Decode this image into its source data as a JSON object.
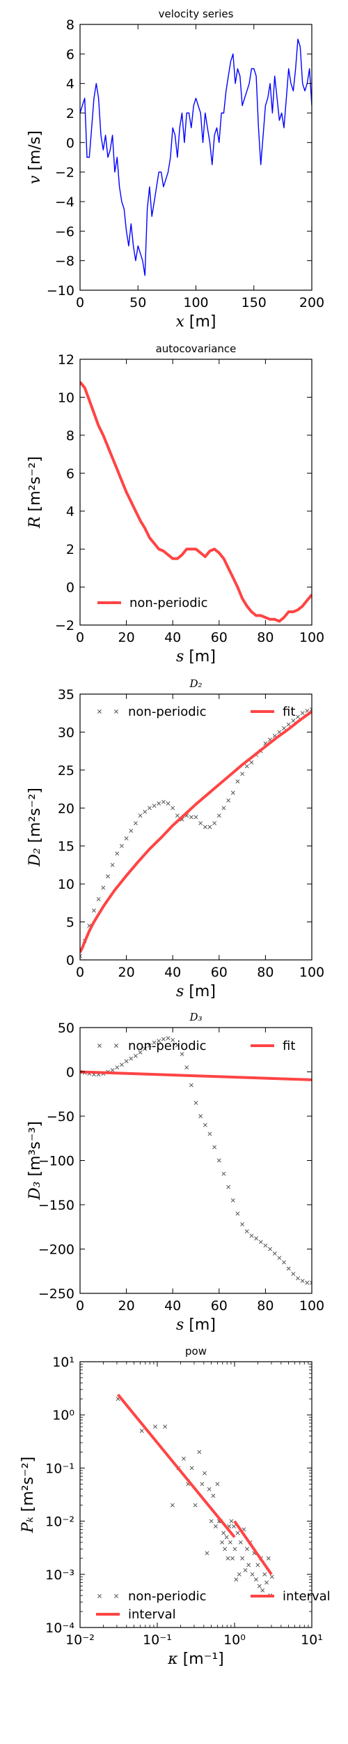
{
  "chart_data": [
    {
      "id": "velocity",
      "type": "line",
      "title": "velocity series",
      "xlabel_symbol": "x",
      "xlabel_unit": "[m]",
      "ylabel_symbol": "v",
      "ylabel_unit": "[m/s]",
      "xlim": [
        0,
        200
      ],
      "ylim": [
        -10,
        8
      ],
      "xticks": [
        0,
        50,
        100,
        150,
        200
      ],
      "yticks": [
        -10,
        -8,
        -6,
        -4,
        -2,
        0,
        2,
        4,
        6,
        8
      ],
      "legend": "none",
      "series": [
        {
          "color": "#0000ff",
          "style": "line",
          "x": [
            0,
            2,
            4,
            6,
            8,
            10,
            12,
            14,
            16,
            18,
            20,
            22,
            24,
            26,
            28,
            30,
            32,
            34,
            36,
            38,
            40,
            42,
            44,
            46,
            48,
            50,
            52,
            54,
            56,
            58,
            60,
            62,
            64,
            66,
            68,
            70,
            72,
            74,
            76,
            78,
            80,
            82,
            84,
            86,
            88,
            90,
            92,
            94,
            96,
            98,
            100,
            102,
            104,
            106,
            108,
            110,
            112,
            114,
            116,
            118,
            120,
            122,
            124,
            126,
            128,
            130,
            132,
            134,
            136,
            138,
            140,
            142,
            144,
            146,
            148,
            150,
            152,
            154,
            156,
            158,
            160,
            162,
            164,
            166,
            168,
            170,
            172,
            174,
            176,
            178,
            180,
            182,
            184,
            186,
            188,
            190,
            192,
            194,
            196,
            198,
            200
          ],
          "y": [
            2,
            2.5,
            3,
            -1,
            -1,
            1,
            3,
            4,
            3,
            0.5,
            -0.5,
            0.5,
            -1,
            -0.5,
            0.5,
            -2,
            -1,
            -3,
            -4,
            -4.5,
            -6,
            -7,
            -5.5,
            -7,
            -8,
            -7,
            -7.5,
            -8,
            -9,
            -4.5,
            -3,
            -5,
            -4,
            -3,
            -2,
            -2,
            -3,
            -2.5,
            -2,
            -1,
            1,
            0.5,
            -1,
            1,
            2,
            0,
            2,
            2,
            1,
            2.5,
            3,
            2.5,
            2,
            0,
            2,
            1,
            0,
            -1.5,
            0.5,
            1,
            0,
            2,
            2,
            3.5,
            4.5,
            5.5,
            6,
            4,
            5,
            4.5,
            2.5,
            3,
            3.5,
            4,
            5,
            5,
            4.5,
            1,
            -1.5,
            0.5,
            2.5,
            3,
            4,
            2,
            4.5,
            3,
            1.5,
            2,
            1,
            3,
            5,
            4,
            3.5,
            5,
            7,
            6.5,
            4,
            3.5,
            4,
            5,
            2.5
          ]
        }
      ]
    },
    {
      "id": "autocov",
      "type": "line",
      "title": "autocovariance",
      "xlabel_symbol": "s",
      "xlabel_unit": "[m]",
      "ylabel_symbol": "R",
      "ylabel_unit": "[m²s⁻²]",
      "xlim": [
        0,
        100
      ],
      "ylim": [
        -2,
        12
      ],
      "xticks": [
        0,
        20,
        40,
        60,
        80,
        100
      ],
      "yticks": [
        -2,
        0,
        2,
        4,
        6,
        8,
        10,
        12
      ],
      "legend": "bottom-left",
      "series": [
        {
          "name": "non-periodic",
          "color": "#ff4444",
          "style": "line",
          "x": [
            0,
            2,
            5,
            8,
            10,
            12,
            14,
            16,
            18,
            20,
            22,
            24,
            26,
            28,
            30,
            32,
            34,
            36,
            38,
            40,
            42,
            44,
            46,
            48,
            50,
            52,
            54,
            56,
            58,
            60,
            62,
            64,
            66,
            68,
            70,
            72,
            74,
            76,
            78,
            80,
            82,
            84,
            86,
            88,
            90,
            92,
            94,
            96,
            98,
            100
          ],
          "y": [
            10.8,
            10.5,
            9.5,
            8.5,
            8.0,
            7.4,
            6.8,
            6.2,
            5.6,
            5.0,
            4.5,
            4.0,
            3.5,
            3.1,
            2.6,
            2.3,
            2.0,
            1.9,
            1.7,
            1.5,
            1.5,
            1.7,
            2.0,
            2.0,
            2.0,
            1.8,
            1.6,
            1.9,
            2.0,
            1.8,
            1.5,
            1.0,
            0.5,
            0.0,
            -0.6,
            -1.0,
            -1.3,
            -1.5,
            -1.5,
            -1.6,
            -1.7,
            -1.7,
            -1.8,
            -1.6,
            -1.3,
            -1.3,
            -1.2,
            -1.0,
            -0.7,
            -0.4
          ]
        }
      ]
    },
    {
      "id": "d2",
      "type": "scatter",
      "title": "D₂",
      "xlabel_symbol": "s",
      "xlabel_unit": "[m]",
      "ylabel_symbol": "D₂",
      "ylabel_unit": "[m²s⁻²]",
      "xlim": [
        0,
        100
      ],
      "ylim": [
        0,
        35
      ],
      "xticks": [
        0,
        20,
        40,
        60,
        80,
        100
      ],
      "yticks": [
        0,
        5,
        10,
        15,
        20,
        25,
        30,
        35
      ],
      "legend": "top",
      "series": [
        {
          "name": "non-periodic",
          "color": "#555555",
          "style": "marker-x",
          "x": [
            0,
            2,
            4,
            6,
            8,
            10,
            12,
            14,
            16,
            18,
            20,
            22,
            24,
            26,
            28,
            30,
            32,
            34,
            36,
            38,
            40,
            42,
            44,
            46,
            48,
            50,
            52,
            54,
            56,
            58,
            60,
            62,
            64,
            66,
            68,
            70,
            72,
            74,
            76,
            78,
            80,
            82,
            84,
            86,
            88,
            90,
            92,
            94,
            96,
            98,
            100
          ],
          "y": [
            0.5,
            2.5,
            4.5,
            6.5,
            8,
            9.5,
            11,
            12.5,
            14,
            15,
            16,
            17,
            18,
            19,
            19.5,
            20,
            20.3,
            20.6,
            20.8,
            20.6,
            20,
            19,
            18.5,
            19,
            18.8,
            18.8,
            18,
            17.5,
            17.5,
            18,
            19,
            20,
            21,
            22,
            23.5,
            24.5,
            25.5,
            26,
            27,
            27.5,
            28.5,
            29,
            29.5,
            30,
            30.5,
            31,
            31.5,
            32,
            32.5,
            32.8,
            33
          ]
        },
        {
          "name": "fit",
          "color": "#ff4444",
          "style": "line",
          "x": [
            0,
            1,
            2,
            4,
            6,
            8,
            10,
            12,
            15,
            20,
            25,
            30,
            35,
            40,
            45,
            50,
            55,
            60,
            65,
            70,
            75,
            80,
            85,
            90,
            95,
            100
          ],
          "y": [
            1,
            1.6,
            2.4,
            3.8,
            5.0,
            6.0,
            7.0,
            7.9,
            9.2,
            11.1,
            12.9,
            14.6,
            16.1,
            17.7,
            19.1,
            20.5,
            21.8,
            23.1,
            24.4,
            25.7,
            26.9,
            28.1,
            29.3,
            30.4,
            31.6,
            32.7
          ]
        }
      ]
    },
    {
      "id": "d3",
      "type": "scatter",
      "title": "D₃",
      "xlabel_symbol": "s",
      "xlabel_unit": "[m]",
      "ylabel_symbol": "D₃",
      "ylabel_unit": "[m³s⁻³]",
      "xlim": [
        0,
        100
      ],
      "ylim": [
        -250,
        50
      ],
      "xticks": [
        0,
        20,
        40,
        60,
        80,
        100
      ],
      "yticks": [
        -250,
        -200,
        -150,
        -100,
        -50,
        0,
        50
      ],
      "legend": "top",
      "series": [
        {
          "name": "non-periodic",
          "color": "#555555",
          "style": "marker-x",
          "x": [
            0,
            2,
            4,
            6,
            8,
            10,
            12,
            14,
            16,
            18,
            20,
            22,
            24,
            26,
            28,
            30,
            32,
            34,
            36,
            38,
            40,
            42,
            44,
            46,
            48,
            50,
            52,
            54,
            56,
            58,
            60,
            62,
            64,
            66,
            68,
            70,
            72,
            74,
            76,
            78,
            80,
            82,
            84,
            86,
            88,
            90,
            92,
            94,
            96,
            98,
            100
          ],
          "y": [
            0,
            -1,
            -2,
            -3,
            -3,
            -2,
            0,
            2,
            5,
            8,
            12,
            15,
            18,
            22,
            26,
            30,
            33,
            35,
            37,
            38,
            36,
            30,
            20,
            5,
            -15,
            -35,
            -50,
            -60,
            -70,
            -85,
            -100,
            -115,
            -130,
            -145,
            -160,
            -172,
            -180,
            -185,
            -188,
            -192,
            -196,
            -200,
            -205,
            -210,
            -215,
            -222,
            -228,
            -233,
            -236,
            -238,
            -238
          ]
        },
        {
          "name": "fit",
          "color": "#ff4444",
          "style": "line",
          "x": [
            0,
            100
          ],
          "y": [
            0,
            -9
          ]
        }
      ]
    },
    {
      "id": "pow",
      "type": "scatter",
      "title": "pow",
      "xlabel_symbol": "κ",
      "xlabel_unit": "[m⁻¹]",
      "ylabel_symbol": "Pₖ",
      "ylabel_unit": "[m²s⁻²]",
      "xscale": "log",
      "yscale": "log",
      "xlim": [
        0.01,
        10
      ],
      "ylim": [
        0.0001,
        10
      ],
      "xticks": [
        0.01,
        0.1,
        1,
        10
      ],
      "yticks": [
        0.0001,
        0.001,
        0.01,
        0.1,
        1,
        10
      ],
      "legend": "bottom",
      "series": [
        {
          "name": "non-periodic",
          "color": "#555555",
          "style": "marker-x",
          "x": [
            0.031,
            0.063,
            0.094,
            0.126,
            0.157,
            0.188,
            0.22,
            0.25,
            0.28,
            0.31,
            0.35,
            0.38,
            0.41,
            0.44,
            0.47,
            0.5,
            0.53,
            0.57,
            0.6,
            0.63,
            0.66,
            0.69,
            0.72,
            0.75,
            0.79,
            0.82,
            0.85,
            0.88,
            0.91,
            0.94,
            0.98,
            1.01,
            1.05,
            1.1,
            1.15,
            1.2,
            1.26,
            1.32,
            1.38,
            1.45,
            1.52,
            1.6,
            1.7,
            1.8,
            1.9,
            2.0,
            2.1,
            2.2,
            2.3,
            2.45,
            2.6,
            2.75,
            2.9,
            3.05
          ],
          "y": [
            2,
            0.5,
            0.6,
            0.6,
            0.02,
            0.1,
            0.15,
            0.05,
            0.1,
            0.02,
            0.2,
            0.05,
            0.08,
            0.0025,
            0.04,
            0.01,
            0.03,
            0.008,
            0.05,
            0.01,
            0.01,
            0.004,
            0.006,
            0.003,
            0.005,
            0.002,
            0.008,
            0.004,
            0.01,
            0.002,
            0.008,
            0.003,
            0.0008,
            0.006,
            0.001,
            0.004,
            0.002,
            0.007,
            0.0012,
            0.003,
            0.0015,
            0.004,
            0.001,
            0.0025,
            0.0008,
            0.0015,
            0.0006,
            0.002,
            0.0005,
            0.001,
            0.0007,
            0.002,
            0.0004,
            0.0009
          ]
        },
        {
          "name": "interval",
          "color": "#ff4444",
          "style": "line",
          "x": [
            0.031,
            1.0
          ],
          "y": [
            2.4,
            0.005
          ]
        },
        {
          "name": "interval",
          "color": "#ff4444",
          "style": "line",
          "x": [
            1.0,
            3.0
          ],
          "y": [
            0.01,
            0.001
          ]
        }
      ]
    }
  ]
}
